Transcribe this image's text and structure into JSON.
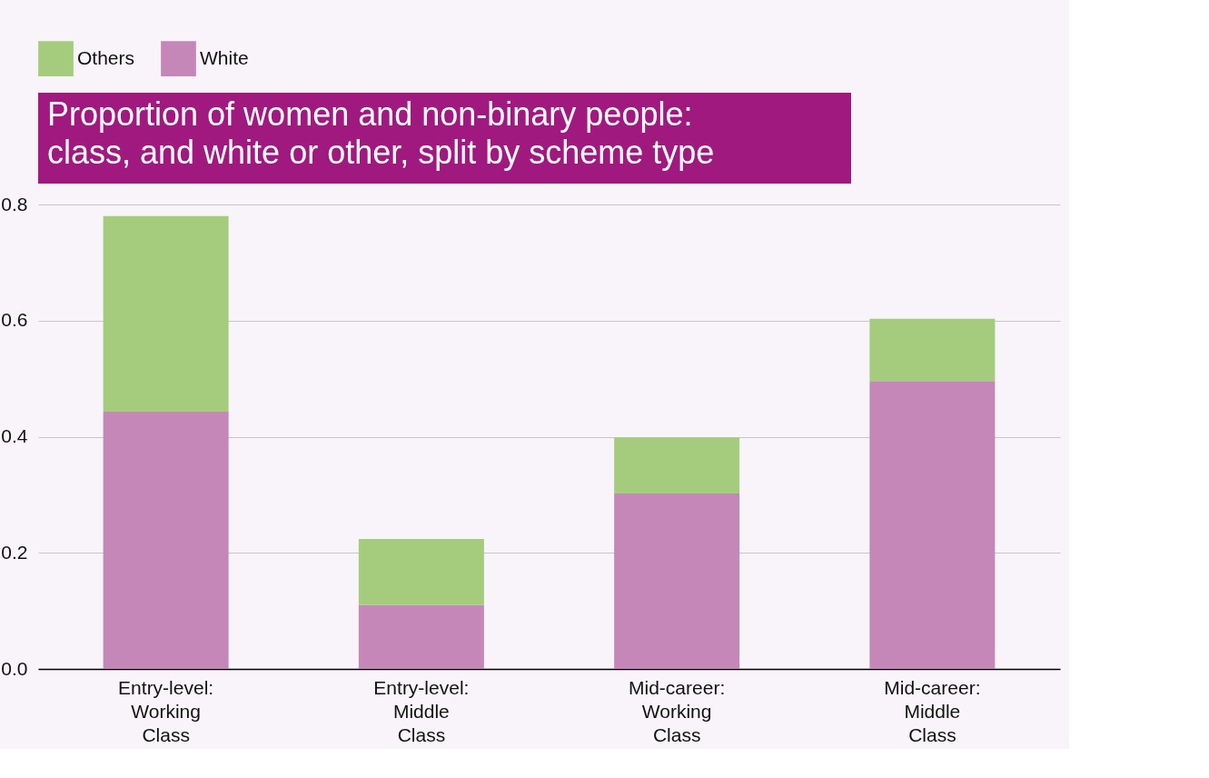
{
  "chart_data": {
    "type": "bar",
    "title": "Proportion of women and non-binary people: class, and white or other, split by scheme type",
    "categories": [
      "Entry-level: Working Class",
      "Entry-level: Middle Class",
      "Mid-career: Working Class",
      "Mid-career: Middle Class"
    ],
    "stacked": true,
    "series": [
      {
        "name": "White",
        "color": "#c587b8",
        "values": [
          0.443,
          0.11,
          0.302,
          0.496
        ]
      },
      {
        "name": "Others",
        "color": "#a5cc7d",
        "values": [
          0.337,
          0.114,
          0.097,
          0.107
        ]
      }
    ],
    "ylim": [
      0,
      0.8
    ],
    "yticks": [
      {
        "value": 0,
        "label": "0.0"
      },
      {
        "value": 0.2,
        "label": "0.2"
      },
      {
        "value": 0.4,
        "label": "0.4"
      },
      {
        "value": 0.6,
        "label": "0.6"
      },
      {
        "value": 0.8,
        "label": "0.8"
      }
    ],
    "grid": "y",
    "legend": "top"
  }
}
